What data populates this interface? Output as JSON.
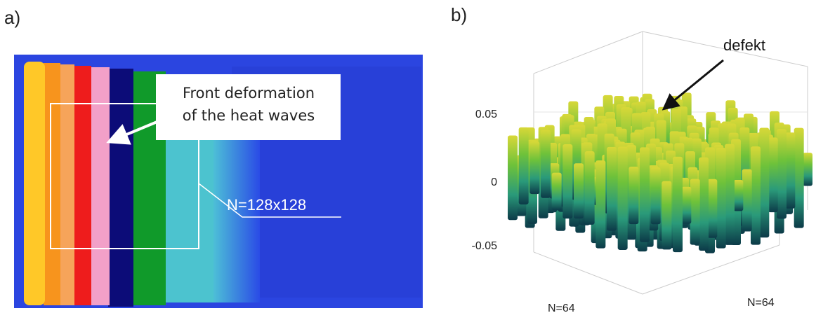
{
  "panels": [
    {
      "label": "a)",
      "callout": [
        "Front deformation",
        "of the heat waves"
      ],
      "size_label": "N=128x128"
    },
    {
      "label": "b)",
      "annotation": "defekt",
      "z_tick_labels": [
        "0.05",
        "0",
        "-0.05"
      ],
      "axis_labels": [
        "N=64",
        "N=64"
      ]
    }
  ]
}
